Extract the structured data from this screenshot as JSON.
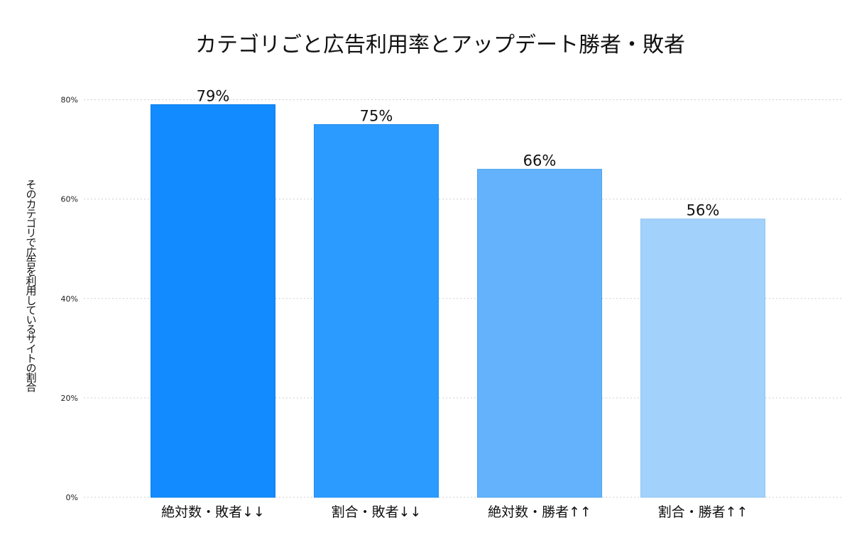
{
  "chart_data": {
    "type": "bar",
    "title": "カテゴリごと広告利用率とアップデート勝者・敗者",
    "xlabel": "",
    "ylabel": "そのカテゴリで広告を利用しているサイトの割合",
    "categories": [
      "絶対数・敗者↓↓",
      "割合・敗者↓↓",
      "絶対数・勝者↑↑",
      "割合・勝者↑↑"
    ],
    "values": [
      79,
      75,
      66,
      56
    ],
    "data_labels": [
      "79%",
      "75%",
      "66%",
      "56%"
    ],
    "ylim": [
      0,
      80
    ],
    "yticks": [
      0,
      20,
      40,
      60,
      80
    ],
    "ytick_labels": [
      "0%",
      "20%",
      "40%",
      "60%",
      "80%"
    ],
    "bar_colors": [
      "#118bff",
      "#2b9bff",
      "#63b2fb",
      "#a2d2fb"
    ],
    "bar_border_colors": [
      "#0b7fe8",
      "#1e8ff0",
      "#4ea2ef",
      "#8fc5f3"
    ],
    "grid": "horizontal dotted",
    "legend": "none"
  }
}
